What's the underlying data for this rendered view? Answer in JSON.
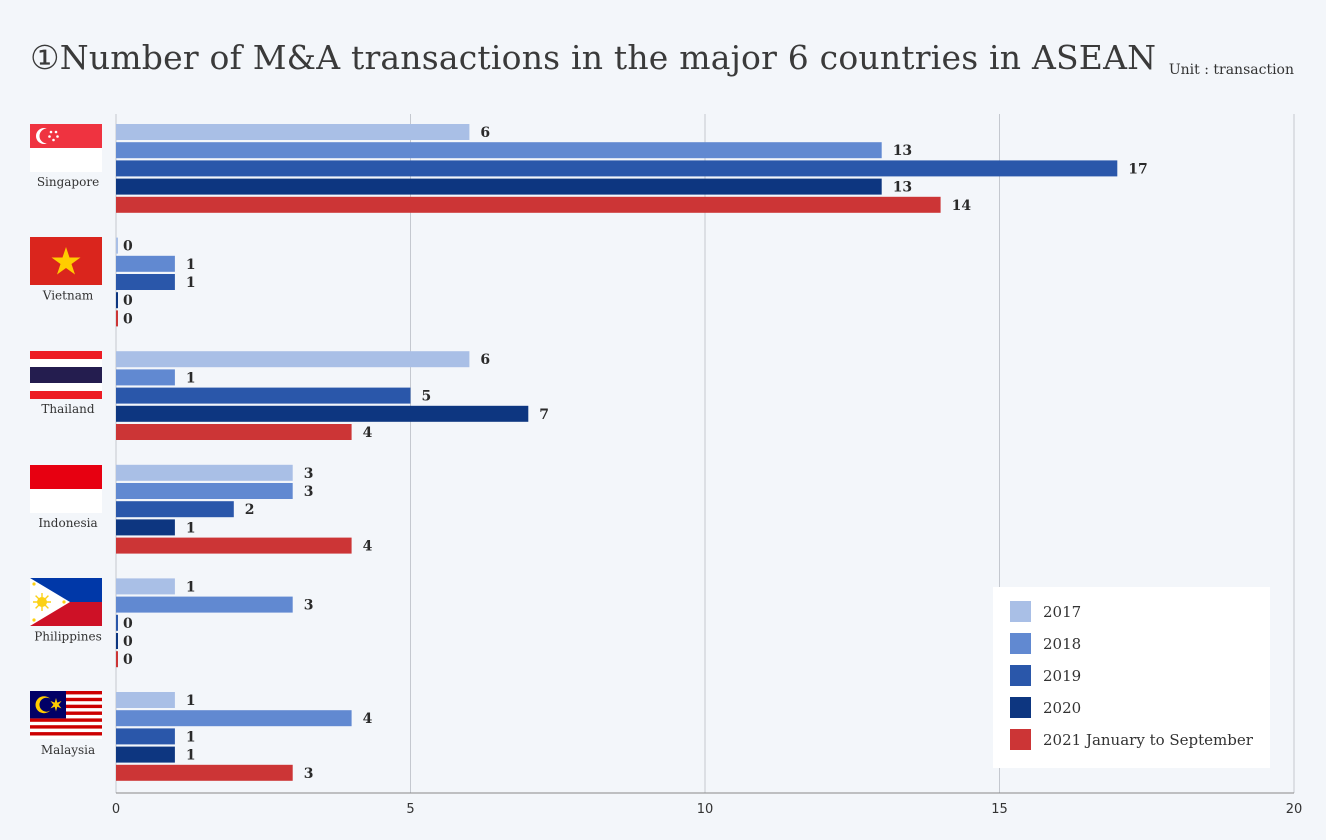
{
  "header": {
    "title": "①Number of M&A transactions in the major 6 countries in ASEAN",
    "unit": "Unit : transaction"
  },
  "colors": {
    "s2017": "#a9bfe6",
    "s2018": "#6189d1",
    "s2019": "#2a57aa",
    "s2020": "#0d3680",
    "s2021": "#cc3536",
    "grid": "#c4c8cf",
    "axis": "#888888"
  },
  "chart_data": {
    "type": "bar",
    "orientation": "horizontal",
    "title": "①Number of M&A transactions in the major 6 countries in ASEAN",
    "unit": "Unit : transaction",
    "categories": [
      "Singapore",
      "Vietnam",
      "Thailand",
      "Indonesia",
      "Philippines",
      "Malaysia"
    ],
    "series": [
      {
        "name": "2017",
        "values": [
          6,
          0,
          6,
          3,
          1,
          1
        ]
      },
      {
        "name": "2018",
        "values": [
          13,
          1,
          1,
          3,
          3,
          4
        ]
      },
      {
        "name": "2019",
        "values": [
          17,
          1,
          5,
          2,
          0,
          1
        ]
      },
      {
        "name": "2020",
        "values": [
          13,
          0,
          7,
          1,
          0,
          1
        ]
      },
      {
        "name": "2021 January to September",
        "values": [
          14,
          0,
          4,
          4,
          0,
          3
        ]
      }
    ],
    "xlim": [
      0,
      20
    ],
    "xticks": [
      0,
      5,
      10,
      15,
      20
    ],
    "grid": true,
    "legend": "bottom-right"
  },
  "flags": [
    "singapore-flag",
    "vietnam-flag",
    "thailand-flag",
    "indonesia-flag",
    "philippines-flag",
    "malaysia-flag"
  ]
}
